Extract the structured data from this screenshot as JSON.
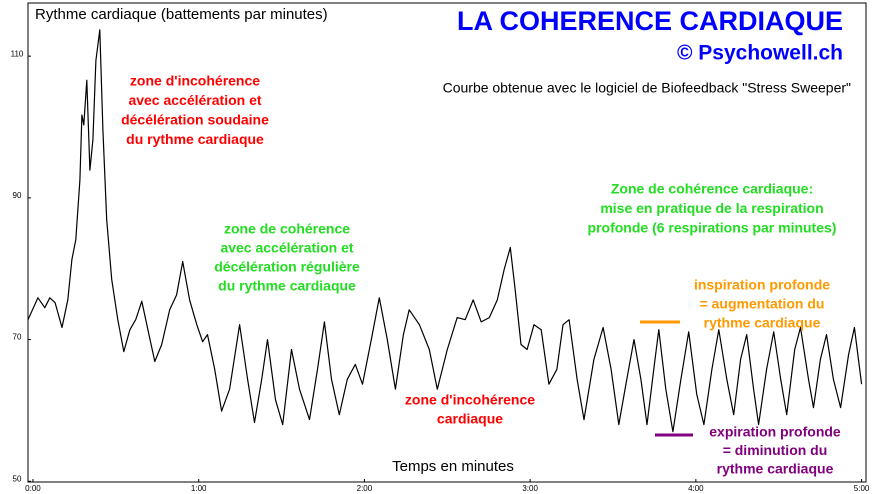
{
  "chart_data": {
    "type": "line",
    "title": "LA COHERENCE CARDIAQUE",
    "subtitle": "© Psychowell.ch",
    "note": "Courbe obtenue avec le logiciel de Biofeedback \"Stress Sweeper\"",
    "ylabel": "Rythme cardiaque (battements par minutes)",
    "xlabel": "Temps en minutes",
    "color": "#000000",
    "xlim": [
      -1.8,
      301.6
    ],
    "ylim": [
      49.9,
      117.5
    ],
    "yticks": [
      50,
      70,
      90,
      110
    ],
    "xticks": [
      {
        "value": 0,
        "label": "0:00"
      },
      {
        "value": 60,
        "label": "1:00"
      },
      {
        "value": 120,
        "label": "2:00"
      },
      {
        "value": 180,
        "label": "3:00"
      },
      {
        "value": 240,
        "label": "4:00"
      },
      {
        "value": 300,
        "label": "5:00"
      }
    ],
    "x": [
      -1.8,
      1.8,
      4.3,
      6.1,
      8.0,
      10.5,
      12.6,
      14.1,
      15.5,
      17.0,
      17.7,
      18.4,
      19.5,
      20.6,
      21.7,
      22.8,
      24.2,
      25.3,
      26.7,
      28.5,
      30.7,
      32.9,
      35.1,
      37.2,
      39.4,
      41.6,
      44.1,
      46.6,
      49.5,
      52.0,
      54.2,
      56.7,
      59.3,
      61.4,
      63.2,
      65.8,
      68.3,
      71.2,
      74.8,
      77.7,
      80.2,
      82.8,
      84.9,
      87.8,
      90.4,
      93.6,
      96.5,
      100.1,
      103.0,
      105.5,
      108.1,
      110.9,
      113.8,
      116.7,
      119.3,
      122.5,
      125.4,
      128.3,
      131.2,
      134.1,
      136.2,
      139.9,
      143.5,
      146.4,
      150.0,
      153.6,
      156.5,
      159.4,
      162.3,
      165.2,
      168.1,
      170.6,
      172.8,
      174.6,
      176.7,
      178.9,
      181.4,
      184.0,
      186.8,
      189.7,
      191.9,
      194.1,
      197.0,
      199.5,
      203.1,
      206.4,
      209.3,
      212.1,
      215.0,
      217.6,
      220.1,
      222.3,
      225.2,
      226.6,
      229.1,
      231.7,
      234.6,
      237.4,
      240.3,
      242.9,
      245.8,
      248.3,
      251.2,
      253.7,
      256.2,
      258.4,
      260.9,
      262.7,
      265.6,
      268.2,
      270.7,
      272.9,
      275.8,
      277.9,
      280.8,
      282.6,
      285.1,
      287.3,
      289.8,
      292.4,
      295.3,
      297.4,
      300.0
    ],
    "values": [
      72.8,
      75.9,
      74.5,
      75.9,
      75.2,
      71.7,
      75.6,
      81.3,
      84.1,
      92.5,
      101.7,
      100.3,
      106.6,
      93.9,
      98.2,
      109.4,
      113.7,
      99.6,
      86.9,
      78.5,
      72.8,
      68.3,
      71.4,
      72.8,
      75.4,
      71.4,
      66.9,
      69.3,
      74.2,
      76.3,
      81.0,
      75.6,
      72.1,
      69.7,
      70.7,
      65.8,
      59.9,
      63.0,
      72.1,
      64.4,
      58.3,
      64.4,
      70.0,
      61.5,
      58.0,
      68.6,
      63.0,
      58.7,
      65.8,
      72.5,
      64.4,
      59.4,
      64.4,
      66.5,
      63.7,
      70.0,
      75.9,
      70.0,
      63.0,
      70.7,
      74.2,
      72.1,
      68.6,
      63.0,
      68.6,
      73.1,
      72.8,
      75.6,
      72.5,
      73.1,
      75.6,
      79.9,
      83.0,
      77.0,
      69.3,
      68.6,
      72.1,
      71.4,
      63.7,
      65.8,
      72.1,
      72.8,
      64.4,
      58.7,
      67.2,
      71.7,
      65.8,
      58.0,
      64.4,
      70.0,
      64.4,
      58.0,
      67.2,
      71.4,
      63.0,
      57.0,
      64.4,
      71.1,
      62.3,
      58.0,
      65.8,
      71.4,
      64.4,
      59.4,
      67.2,
      70.7,
      63.0,
      58.0,
      65.8,
      71.1,
      64.4,
      59.4,
      68.6,
      71.7,
      64.4,
      60.4,
      67.2,
      70.7,
      64.4,
      60.4,
      67.9,
      71.7,
      63.7
    ],
    "annotations": [
      {
        "color": "#ff0000",
        "lines": [
          "zone d'incohérence",
          "avec accélération et",
          "décélération soudaine",
          "du rythme cardiaque"
        ]
      },
      {
        "color": "#22dd22",
        "lines": [
          "zone de cohérence",
          "avec accélération et",
          "décélération régulière",
          "du rythme cardiaque"
        ]
      },
      {
        "color": "#ff0000",
        "lines": [
          "zone d'incohérence",
          "cardiaque"
        ]
      },
      {
        "color": "#22dd22",
        "lines": [
          "Zone de cohérence cardiaque:",
          "mise en pratique de la respiration",
          "profonde (6 respirations par minutes)"
        ]
      },
      {
        "color": "#ff9900",
        "lines": [
          "inspiration profonde",
          "= augmentation du",
          "rythme cardiaque"
        ]
      },
      {
        "color": "#800080",
        "lines": [
          "expiration profonde",
          "= diminution du",
          "rythme cardiaque"
        ]
      }
    ]
  }
}
